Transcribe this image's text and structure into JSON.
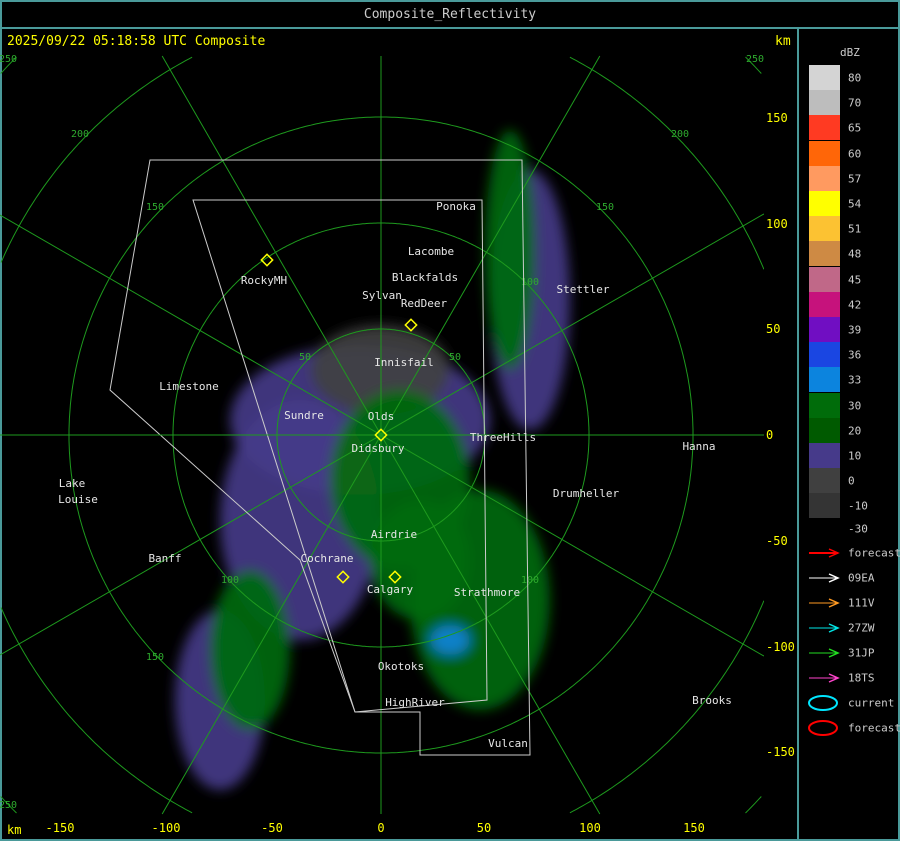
{
  "window_title": "Composite_Reflectivity",
  "timestamp": "2025/09/22 05:18:58 UTC Composite",
  "unit_label": "km",
  "x_ticks": [
    "-150",
    "-100",
    "-50",
    "0",
    "50",
    "100",
    "150"
  ],
  "y_ticks": [
    "150",
    "100",
    "50",
    "0",
    "-50",
    "-100",
    "-150"
  ],
  "range_ring_labels": [
    "50",
    "100",
    "150",
    "200",
    "250"
  ],
  "cities": [
    "Ponoka",
    "Lacombe",
    "Blackfalds",
    "Sylvan",
    "RedDeer",
    "RockyMH",
    "Innisfail",
    "Limestone",
    "Sundre",
    "Olds",
    "Didsbury",
    "ThreeHills",
    "Hanna",
    "Stettler",
    "Drumheller",
    "Lake",
    "Louise",
    "Airdrie",
    "Banff",
    "Cochrane",
    "Calgary",
    "Strathmore",
    "Okotoks",
    "HighRiver",
    "Vulcan",
    "Brooks"
  ],
  "legend": {
    "title": "dBZ",
    "levels": [
      {
        "label": "80",
        "color": "#d4d4d4"
      },
      {
        "label": "70",
        "color": "#bdbdbd"
      },
      {
        "label": "65",
        "color": "#ff3a22"
      },
      {
        "label": "60",
        "color": "#ff6608"
      },
      {
        "label": "57",
        "color": "#ff9a60"
      },
      {
        "label": "54",
        "color": "#ffff00"
      },
      {
        "label": "51",
        "color": "#fcc232"
      },
      {
        "label": "48",
        "color": "#ce8a44"
      },
      {
        "label": "45",
        "color": "#c06888"
      },
      {
        "label": "42",
        "color": "#c6127c"
      },
      {
        "label": "39",
        "color": "#700ec2"
      },
      {
        "label": "36",
        "color": "#1a46e2"
      },
      {
        "label": "33",
        "color": "#0c84de"
      },
      {
        "label": "30",
        "color": "#006c0a"
      },
      {
        "label": "20",
        "color": "#005a00"
      },
      {
        "label": "10",
        "color": "#463a8a"
      },
      {
        "label": "0",
        "color": "#404040"
      },
      {
        "label": "-10",
        "color": "#343434"
      }
    ],
    "bottom_label": "-30",
    "tracks": [
      {
        "label": "forecast",
        "color": "#ff0000",
        "icon": "arrow-icon"
      },
      {
        "label": "09EA",
        "color": "#ffffff",
        "icon": "arrow-icon"
      },
      {
        "label": "111V",
        "color": "#ff9a22",
        "icon": "arrow-icon"
      },
      {
        "label": "27ZW",
        "color": "#00e6e6",
        "icon": "arrow-icon"
      },
      {
        "label": "31JP",
        "color": "#22dd22",
        "icon": "arrow-icon"
      },
      {
        "label": "18TS",
        "color": "#ff44cc",
        "icon": "arrow-icon"
      },
      {
        "label": "current",
        "color": "#00e6ff",
        "icon": "ellipse-icon"
      },
      {
        "label": "forecast",
        "color": "#ff0000",
        "icon": "ellipse-icon"
      }
    ]
  }
}
